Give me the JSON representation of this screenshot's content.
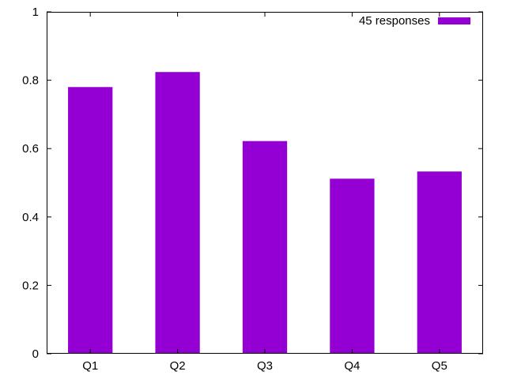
{
  "chart_data": {
    "type": "bar",
    "categories": [
      "Q1",
      "Q2",
      "Q3",
      "Q4",
      "Q5"
    ],
    "series": [
      {
        "name": "45 responses",
        "values": [
          0.78,
          0.824,
          0.622,
          0.512,
          0.533
        ],
        "color": "#9400d3"
      }
    ],
    "ylim": [
      0,
      1
    ],
    "yticks": [
      0,
      0.2,
      0.4,
      0.6,
      0.8,
      1
    ],
    "ytick_labels": [
      "0",
      "0.2",
      "0.4",
      "0.6",
      "0.8",
      "1"
    ],
    "title": "",
    "xlabel": "",
    "ylabel": "",
    "grid": false,
    "legend_position": "top-right"
  }
}
